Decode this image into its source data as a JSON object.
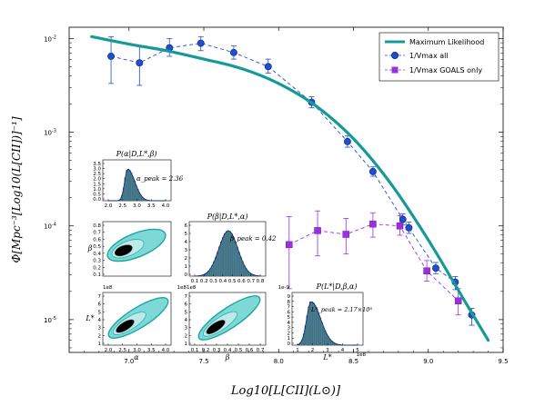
{
  "chart_data": {
    "type": "scatter",
    "xlabel": "Log10[L[CII](L⊙)]",
    "ylabel": "Φ[Mpc⁻³[Log10(L[CII])]⁻¹]",
    "yscale": "log",
    "xlim": [
      6.6,
      9.5
    ],
    "ylim_exp": [
      -5.35,
      -1.88
    ],
    "xticks": [
      "7.0",
      "7.5",
      "8.0",
      "8.5",
      "9.0",
      "9.5"
    ],
    "yticks": [
      {
        "exp": -2,
        "base": "10",
        "sup": "-2"
      },
      {
        "exp": -3,
        "base": "10",
        "sup": "-3"
      },
      {
        "exp": -4,
        "base": "10",
        "sup": "-4"
      },
      {
        "exp": -5,
        "base": "10",
        "sup": "-5"
      }
    ],
    "legend": {
      "placement": "top-right",
      "entries": [
        "Maximum Likelihood",
        "1/Vmax all",
        "1/Vmax GOALS only"
      ]
    },
    "colors": {
      "ml": "#169a98",
      "vall": "#1f4fcf",
      "vall_edge": "#0b2a8f",
      "goals": "#9b30e0",
      "hist": "#4a7f91",
      "fit": "#0f2a7a"
    },
    "series": [
      {
        "name": "Maximum Likelihood",
        "kind": "line",
        "log10_y": true,
        "x": [
          6.75,
          7.0,
          7.25,
          7.5,
          7.75,
          8.0,
          8.25,
          8.5,
          8.75,
          9.0,
          9.25,
          9.4
        ],
        "y": [
          -1.98,
          -2.06,
          -2.13,
          -2.22,
          -2.32,
          -2.48,
          -2.72,
          -3.07,
          -3.55,
          -4.15,
          -4.82,
          -5.22
        ]
      },
      {
        "name": "1/Vmax all",
        "kind": "markers+dashed",
        "log10_y": true,
        "x": [
          6.88,
          7.07,
          7.27,
          7.48,
          7.7,
          7.93,
          8.22,
          8.46,
          8.63,
          8.83,
          8.87,
          9.05,
          9.18,
          9.29
        ],
        "y": [
          -2.19,
          -2.26,
          -2.1,
          -2.05,
          -2.15,
          -2.3,
          -2.68,
          -3.1,
          -3.42,
          -3.93,
          -4.02,
          -4.45,
          -4.6,
          -4.95
        ],
        "yerr_up": [
          -1.98,
          -2.08,
          -2.0,
          -1.98,
          -2.08,
          -2.22,
          -2.62,
          -3.04,
          -3.37,
          -3.87,
          -3.96,
          -4.39,
          -4.54,
          -4.88
        ],
        "yerr_down": [
          -2.48,
          -2.5,
          -2.19,
          -2.13,
          -2.22,
          -2.37,
          -2.74,
          -3.16,
          -3.47,
          -3.99,
          -4.08,
          -4.51,
          -4.68,
          -5.06
        ]
      },
      {
        "name": "1/Vmax GOALS only",
        "kind": "markers+dashed",
        "log10_y": true,
        "x": [
          8.07,
          8.26,
          8.45,
          8.63,
          8.81,
          8.99,
          9.2
        ],
        "y": [
          -4.2,
          -4.05,
          -4.09,
          -3.98,
          -4.0,
          -4.48,
          -4.8
        ],
        "yerr_up": [
          -3.9,
          -3.84,
          -3.92,
          -3.86,
          -3.89,
          -4.37,
          -4.67
        ],
        "yerr_down": [
          -4.67,
          -4.32,
          -4.3,
          -4.12,
          -4.1,
          -4.59,
          -4.95
        ]
      }
    ],
    "insets": {
      "alpha_hist": {
        "title": "P(α|D,L*,β)",
        "annotation": "α_peak = 2.36",
        "peak": 2.36,
        "xticks": [
          "2.0",
          "2.5",
          "3.0",
          "3.5",
          "4.0"
        ],
        "yticks": [
          "0.0",
          "0.5",
          "1.0",
          "1.5",
          "2.0",
          "2.5",
          "3.0",
          "3.5"
        ]
      },
      "beta_hist": {
        "title": "P(β|D,L*,α)",
        "annotation": "β_peak = 0.42",
        "peak": 0.42,
        "xticks": [
          "0.1",
          "0.2",
          "0.3",
          "0.4",
          "0.5",
          "0.6",
          "0.7",
          "0.8"
        ],
        "yticks": [
          "0",
          "1",
          "2",
          "3",
          "4",
          "5",
          "6"
        ],
        "offset": "1e8"
      },
      "lstar_hist": {
        "title": "P(L*|D,β,α)",
        "annotation": "L*_peak = 2.17×10⁸",
        "peak": 2.17,
        "xticks": [
          "1",
          "2",
          "3",
          "4",
          "5"
        ],
        "yticks": [
          "0",
          "1",
          "2",
          "3",
          "4",
          "5",
          "6",
          "7",
          "8",
          "9"
        ],
        "offset_y": "1e-9",
        "offset_x": "1e8",
        "xlabel": "L*"
      },
      "beta_alpha": {
        "ylabel": "β",
        "yticks": [
          "0.1",
          "0.2",
          "0.3",
          "0.4",
          "0.5",
          "0.6",
          "0.7",
          "0.8"
        ]
      },
      "lstar_alpha": {
        "ylabel": "L*",
        "xlabel": "α",
        "yticks": [
          "1",
          "2",
          "3",
          "4",
          "5",
          "6",
          "7"
        ],
        "xticks": [
          "2.0",
          "2.5",
          "3.0",
          "3.5",
          "4.0"
        ],
        "offset": "1e8"
      },
      "lstar_beta": {
        "xlabel": "β",
        "yticks": [
          "1",
          "2",
          "3",
          "4",
          "5",
          "6",
          "7"
        ],
        "xticks": [
          "0.1",
          "0.2",
          "0.3",
          "0.4",
          "0.5",
          "0.6",
          "0.7"
        ],
        "offset": "1e8"
      }
    }
  }
}
